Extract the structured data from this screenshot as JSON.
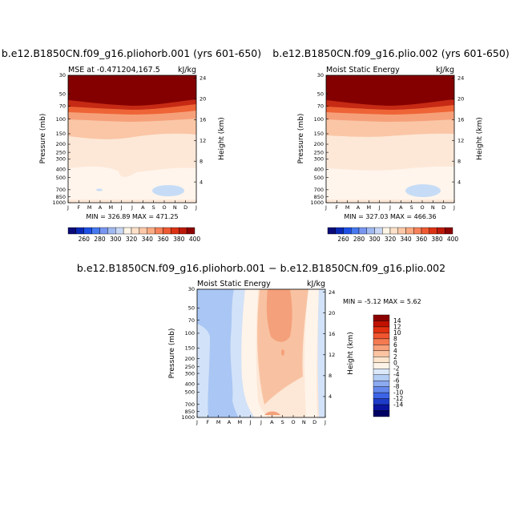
{
  "chart_data": [
    {
      "type": "contour",
      "title": "b.e12.B1850CN.f09_g16.pliohorb.001 (yrs 601-650)",
      "left_label": "MSE at -0.471204,167.5",
      "right_label": "kJ/kg",
      "xlabel_months": [
        "J",
        "F",
        "M",
        "A",
        "M",
        "J",
        "J",
        "A",
        "S",
        "O",
        "N",
        "D",
        "J"
      ],
      "ylabel": "Pressure (mb)",
      "y2label": "Height (km)",
      "pressure_ticks": [
        "30",
        "50",
        "70",
        "100",
        "150",
        "200",
        "250",
        "300",
        "400",
        "500",
        "700",
        "850",
        "1000"
      ],
      "pressure_values": [
        30,
        50,
        70,
        100,
        150,
        200,
        250,
        300,
        400,
        500,
        700,
        850,
        1000
      ],
      "height_ticks": [
        "24",
        "20",
        "16",
        "12",
        "8",
        "4"
      ],
      "height_values": [
        24,
        20,
        16,
        12,
        8,
        4
      ],
      "min_max": "MIN = 326.89  MAX = 471.25",
      "min": 326.89,
      "max": 471.25
    },
    {
      "type": "contour",
      "title": "b.e12.B1850CN.f09_g16.plio.002 (yrs 601-650)",
      "left_label": "Moist Static Energy",
      "right_label": "kJ/kg",
      "xlabel_months": [
        "J",
        "F",
        "M",
        "A",
        "M",
        "J",
        "J",
        "A",
        "S",
        "O",
        "N",
        "D",
        "J"
      ],
      "ylabel": "Pressure (mb)",
      "y2label": "Height (km)",
      "pressure_ticks": [
        "30",
        "50",
        "70",
        "100",
        "150",
        "200",
        "250",
        "300",
        "400",
        "500",
        "700",
        "850",
        "1000"
      ],
      "pressure_values": [
        30,
        50,
        70,
        100,
        150,
        200,
        250,
        300,
        400,
        500,
        700,
        850,
        1000
      ],
      "height_ticks": [
        "24",
        "20",
        "16",
        "12",
        "8",
        "4"
      ],
      "height_values": [
        24,
        20,
        16,
        12,
        8,
        4
      ],
      "min_max": "MIN = 327.03  MAX = 466.36",
      "min": 327.03,
      "max": 466.36
    },
    {
      "type": "contour",
      "title": "b.e12.B1850CN.f09_g16.pliohorb.001 − b.e12.B1850CN.f09_g16.plio.002",
      "left_label": "Moist Static Energy",
      "right_label": "kJ/kg",
      "xlabel_months": [
        "J",
        "F",
        "M",
        "A",
        "M",
        "J",
        "J",
        "A",
        "S",
        "O",
        "N",
        "D",
        "J"
      ],
      "ylabel": "Pressure (mb)",
      "y2label": "Height (km)",
      "pressure_ticks": [
        "30",
        "50",
        "70",
        "100",
        "150",
        "200",
        "250",
        "300",
        "400",
        "500",
        "700",
        "850",
        "1000"
      ],
      "pressure_values": [
        30,
        50,
        70,
        100,
        150,
        200,
        250,
        300,
        400,
        500,
        700,
        850,
        1000
      ],
      "height_ticks": [
        "24",
        "20",
        "16",
        "12",
        "8",
        "4"
      ],
      "height_values": [
        24,
        20,
        16,
        12,
        8,
        4
      ],
      "min_max": "MIN =   -5.12  MAX =    5.62",
      "min": -5.12,
      "max": 5.62
    }
  ],
  "colorbar_top": {
    "labels": [
      "260",
      "280",
      "300",
      "320",
      "340",
      "360",
      "380",
      "400"
    ],
    "colors": [
      "#0a0a78",
      "#0a28b4",
      "#1e50e6",
      "#4678f0",
      "#7896f0",
      "#a0b9f0",
      "#c8d7f5",
      "#fff5e6",
      "#fde1c8",
      "#fcc8a8",
      "#fbaa82",
      "#f7825a",
      "#ee5a32",
      "#dc3214",
      "#bb1a08",
      "#8b0000"
    ]
  },
  "colorbar_diff": {
    "labels": [
      "14",
      "12",
      "10",
      "8",
      "6",
      "4",
      "2",
      "0",
      "-2",
      "-4",
      "-6",
      "-8",
      "-10",
      "-12",
      "-14"
    ],
    "colors": [
      "#8b0000",
      "#c01000",
      "#e03010",
      "#f05530",
      "#f47a50",
      "#f7a07a",
      "#fac4a2",
      "#fde4cc",
      "#fdf3e6",
      "#dbe8fa",
      "#b4cdf5",
      "#8caaf0",
      "#6488eb",
      "#3c64e6",
      "#1e3cc8",
      "#0a14a0",
      "#000064"
    ]
  },
  "colors": {
    "zone_dark": "#840000",
    "zone_red": "#c62a14",
    "zone_orange": "#ee6436",
    "zone_salmon": "#f6a07a",
    "zone_peach": "#fac6a6",
    "zone_cream": "#fde8d8",
    "zone_pale": "#fff5ec",
    "zone_blue": "#c6dcf6",
    "diff_blue": "#a9c6f4",
    "diff_lightblue": "#d2e2f8",
    "diff_cream": "#fde7d6",
    "diff_peach": "#f8c2a2",
    "diff_salmon": "#f4a07a"
  }
}
